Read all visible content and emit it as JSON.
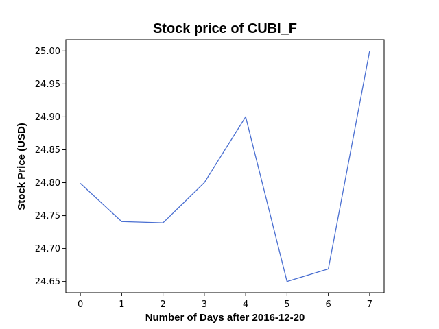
{
  "chart_data": {
    "type": "line",
    "title": "Stock price of CUBI_F",
    "xlabel": "Number of Days after 2016-12-20",
    "ylabel": "Stock Price (USD)",
    "x": [
      0,
      1,
      2,
      3,
      4,
      5,
      6,
      7
    ],
    "series": [
      {
        "values": [
          24.799,
          24.741,
          24.739,
          24.8,
          24.9,
          24.65,
          24.669,
          25.0
        ],
        "color": "#4a6fd1"
      }
    ],
    "xlim": [
      -0.35,
      7.35
    ],
    "ylim": [
      24.633,
      25.017
    ],
    "xticks": [
      0,
      1,
      2,
      3,
      4,
      5,
      6,
      7
    ],
    "yticks": [
      "24.65",
      "24.70",
      "24.75",
      "24.80",
      "24.85",
      "24.90",
      "24.95",
      "25.00"
    ],
    "grid": false
  }
}
